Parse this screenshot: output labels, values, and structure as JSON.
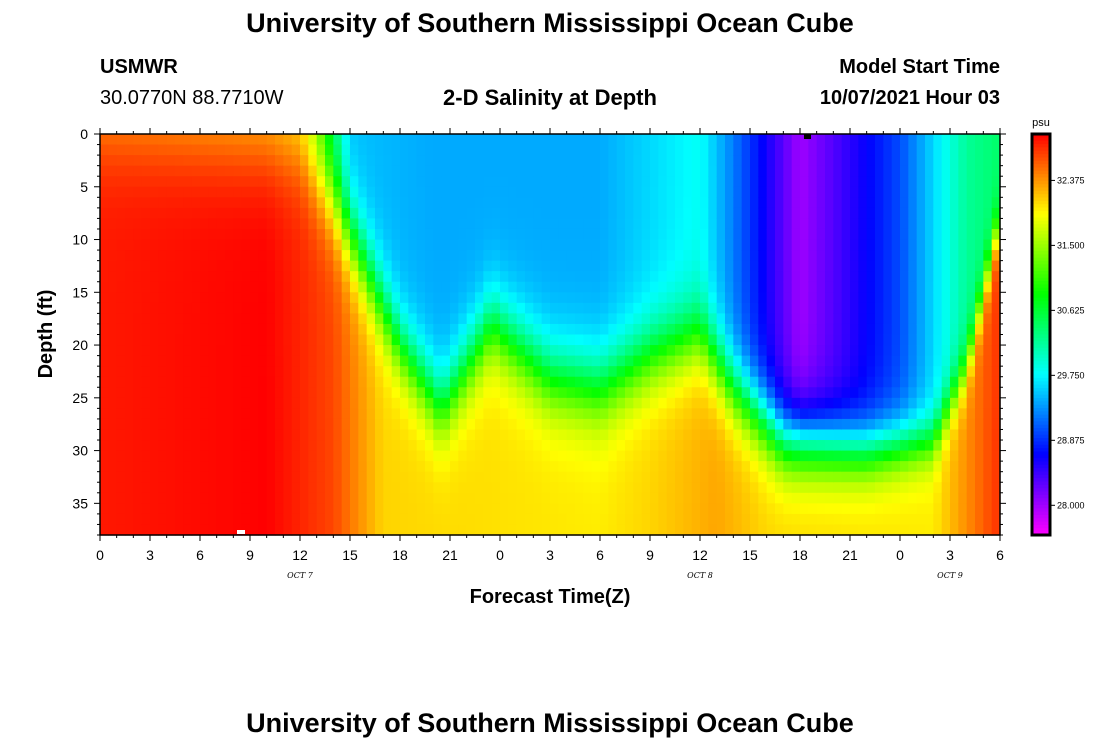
{
  "header": {
    "title": "University of Southern Mississippi Ocean Cube",
    "footer_title": "University of Southern Mississippi Ocean Cube",
    "station": "USMWR",
    "coords": "30.0770N  88.7710W",
    "plot_title": "2-D Salinity at Depth",
    "model_label": "Model Start Time",
    "model_time": "10/07/2021 Hour 03"
  },
  "chart_data": {
    "type": "heatmap",
    "title": "2-D Salinity at Depth",
    "xlabel": "Forecast Time(Z)",
    "ylabel": "Depth (ft)",
    "x_hours_range": [
      0,
      54
    ],
    "x_tick_labels": [
      "0",
      "3",
      "6",
      "9",
      "12",
      "15",
      "18",
      "21",
      "0",
      "3",
      "6",
      "9",
      "12",
      "15",
      "18",
      "21",
      "0",
      "3",
      "6"
    ],
    "day_labels": [
      {
        "text": "OCT 7",
        "hour": 12
      },
      {
        "text": "OCT 8",
        "hour": 36
      },
      {
        "text": "OCT 9",
        "hour": 51
      }
    ],
    "depth_range_ft": [
      0,
      38
    ],
    "y_tick_labels": [
      "0",
      "5",
      "10",
      "15",
      "20",
      "25",
      "30",
      "35"
    ],
    "y_tick_values": [
      0,
      5,
      10,
      15,
      20,
      25,
      30,
      35
    ],
    "colorbar": {
      "unit": "psu",
      "range": [
        27.6,
        33.0
      ],
      "tick_values": [
        28.0,
        28.875,
        29.75,
        30.625,
        31.5,
        32.375
      ],
      "tick_labels": [
        "28.000",
        "28.875",
        "29.750",
        "30.625",
        "31.500",
        "32.375"
      ]
    },
    "fields": {
      "surface_salinity_psu": [
        {
          "hour": 0,
          "psu": 32.2
        },
        {
          "hour": 10,
          "psu": 32.1
        },
        {
          "hour": 12,
          "psu": 31.9
        },
        {
          "hour": 13,
          "psu": 31.3
        },
        {
          "hour": 13.7,
          "psu": 30.6
        },
        {
          "hour": 15,
          "psu": 29.5
        },
        {
          "hour": 20,
          "psu": 29.4
        },
        {
          "hour": 30,
          "psu": 29.4
        },
        {
          "hour": 36,
          "psu": 29.8
        },
        {
          "hour": 42,
          "psu": 28.0
        },
        {
          "hour": 48,
          "psu": 29.0
        },
        {
          "hour": 52,
          "psu": 30.2
        },
        {
          "hour": 54,
          "psu": 30.4
        }
      ],
      "deep_salinity_psu": [
        {
          "hour": 0,
          "psu": 32.9
        },
        {
          "hour": 10,
          "psu": 33.0
        },
        {
          "hour": 14,
          "psu": 32.7
        },
        {
          "hour": 17,
          "psu": 32.1
        },
        {
          "hour": 30,
          "psu": 32.0
        },
        {
          "hour": 33,
          "psu": 32.1
        },
        {
          "hour": 37,
          "psu": 32.3
        },
        {
          "hour": 40,
          "psu": 32.1
        },
        {
          "hour": 50,
          "psu": 32.0
        },
        {
          "hour": 52,
          "psu": 32.4
        },
        {
          "hour": 54,
          "psu": 32.8
        }
      ],
      "halocline_depth_ft": [
        {
          "hour": 0,
          "ft": 0
        },
        {
          "hour": 12,
          "ft": 2
        },
        {
          "hour": 14,
          "ft": 6
        },
        {
          "hour": 18,
          "ft": 20
        },
        {
          "hour": 20.5,
          "ft": 26
        },
        {
          "hour": 23.5,
          "ft": 18
        },
        {
          "hour": 27,
          "ft": 23
        },
        {
          "hour": 30,
          "ft": 24
        },
        {
          "hour": 33,
          "ft": 21
        },
        {
          "hour": 36,
          "ft": 19
        },
        {
          "hour": 38,
          "ft": 24
        },
        {
          "hour": 41,
          "ft": 29
        },
        {
          "hour": 46,
          "ft": 30
        },
        {
          "hour": 50,
          "ft": 29
        },
        {
          "hour": 52,
          "ft": 22
        },
        {
          "hour": 54,
          "ft": 8
        }
      ],
      "halocline_thickness_ft": [
        {
          "hour": 0,
          "ft": 10
        },
        {
          "hour": 14,
          "ft": 10
        },
        {
          "hour": 18,
          "ft": 8
        },
        {
          "hour": 30,
          "ft": 9
        },
        {
          "hour": 40,
          "ft": 8
        },
        {
          "hour": 50,
          "ft": 6
        },
        {
          "hour": 54,
          "ft": 5
        }
      ]
    }
  }
}
